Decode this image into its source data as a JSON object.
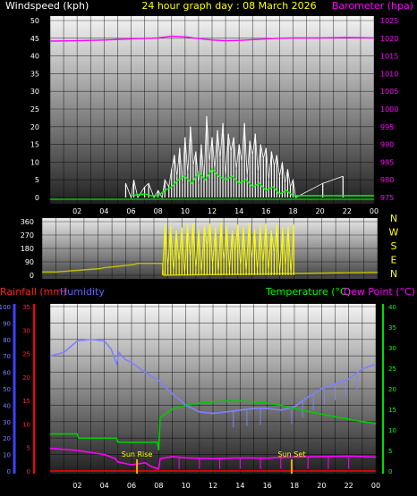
{
  "chart_data": [
    {
      "id": "top",
      "type": "line",
      "title": "24 hour graph day : 08 March 2026",
      "ylabel_left": "Windspeed (kph)",
      "ylabel_right": "Barometer (hpa)",
      "ylim_left": [
        0,
        50
      ],
      "ylim_right": [
        975,
        1025
      ],
      "yticks_left": [
        "0",
        "5",
        "10",
        "15",
        "20",
        "25",
        "30",
        "35",
        "40",
        "45",
        "50"
      ],
      "yticks_right": [
        "975",
        "980",
        "985",
        "990",
        "995",
        "1000",
        "1005",
        "1010",
        "1015",
        "1020",
        "1025"
      ],
      "xticks": [
        "02",
        "04",
        "06",
        "08",
        "10",
        "12",
        "14",
        "16",
        "18",
        "20",
        "22",
        "00"
      ],
      "colors": {
        "title": "#ffff00",
        "windspeed": "#ffffff",
        "gust": "#00ff00",
        "barometer": "#ff00ff",
        "grid": "#000000"
      },
      "series": [
        {
          "name": "Barometer (hpa)",
          "axis": "right",
          "x": [
            0,
            2,
            4,
            6,
            8,
            9,
            10,
            11,
            12,
            13,
            14,
            15,
            16,
            17,
            18,
            20,
            22,
            24
          ],
          "values": [
            1019.2,
            1019.3,
            1019.5,
            1019.8,
            1020.1,
            1020.6,
            1020.4,
            1019.9,
            1019.5,
            1019.3,
            1019.4,
            1019.6,
            1019.8,
            1020,
            1020.1,
            1020.1,
            1020.2,
            1020.1
          ]
        },
        {
          "name": "Windspeed (kph)",
          "axis": "left",
          "x": [
            5.6,
            6,
            6.2,
            6.5,
            7,
            7.3,
            7.7,
            8,
            8.3,
            8.5,
            8.8,
            9,
            9.2,
            9.4,
            9.6,
            9.8,
            10,
            10.2,
            10.4,
            10.6,
            10.8,
            11,
            11.2,
            11.4,
            11.6,
            11.8,
            12,
            12.2,
            12.4,
            12.6,
            12.8,
            13,
            13.2,
            13.4,
            13.6,
            13.8,
            14,
            14.2,
            14.4,
            14.6,
            14.8,
            15,
            15.2,
            15.4,
            15.6,
            15.8,
            16,
            16.2,
            16.4,
            16.6,
            16.8,
            17,
            17.2,
            17.4,
            17.6,
            17.8,
            18,
            18.2,
            20.2,
            21.7
          ],
          "values": [
            4,
            0,
            5,
            0,
            3,
            4,
            0,
            2,
            0,
            5,
            3,
            8,
            12,
            6,
            14,
            4,
            17,
            7,
            20,
            9,
            13,
            4,
            15,
            5,
            23,
            10,
            17,
            8,
            19,
            11,
            21,
            6,
            18,
            13,
            17,
            8,
            15,
            10,
            21,
            6,
            16,
            12,
            18,
            7,
            15,
            11,
            14,
            5,
            13,
            9,
            12,
            6,
            10,
            4,
            8,
            3,
            5,
            0,
            4,
            6
          ]
        },
        {
          "name": "Gust",
          "axis": "left",
          "x": [
            6,
            7,
            7.5,
            8,
            8.5,
            9,
            9.5,
            10,
            10.5,
            11,
            11.5,
            12,
            12.5,
            13,
            13.5,
            14,
            14.5,
            15,
            15.5,
            16,
            16.5,
            17,
            17.5,
            18,
            18.5,
            24
          ],
          "values": [
            0.5,
            1,
            0.5,
            0.5,
            2,
            3,
            5,
            6,
            4,
            7,
            5,
            8,
            6,
            5,
            6,
            4,
            5,
            3,
            4,
            2,
            3,
            1,
            2,
            0.5,
            0.5,
            0.5
          ]
        }
      ]
    },
    {
      "id": "dir",
      "type": "line",
      "ylim": [
        0,
        360
      ],
      "yticks": [
        "0",
        "90",
        "180",
        "270",
        "360"
      ],
      "direction_labels": [
        "N",
        "W",
        "S",
        "E",
        "N"
      ],
      "colors": {
        "direction": "#ffff00",
        "avg": "#c0c000"
      },
      "series": [
        {
          "name": "Wind Direction",
          "x": [
            8.6,
            8.8,
            9,
            9.2,
            9.4,
            9.6,
            9.8,
            10,
            10.2,
            10.4,
            10.6,
            10.8,
            11,
            11.2,
            11.4,
            11.6,
            11.8,
            12,
            12.2,
            12.4,
            12.6,
            12.8,
            13,
            13.2,
            13.4,
            13.6,
            13.8,
            14,
            14.2,
            14.4,
            14.6,
            14.8,
            15,
            15.2,
            15.4,
            15.6,
            15.8,
            16,
            16.2,
            16.4,
            16.6,
            16.8,
            17,
            17.2,
            17.4,
            17.6,
            17.8,
            18
          ],
          "values": [
            0,
            340,
            60,
            330,
            30,
            300,
            90,
            320,
            10,
            340,
            120,
            350,
            45,
            310,
            15,
            330,
            200,
            345,
            70,
            320,
            20,
            355,
            100,
            330,
            40,
            300,
            160,
            340,
            60,
            320,
            25,
            350,
            110,
            310,
            35,
            330,
            80,
            345,
            30,
            300,
            150,
            340,
            20,
            320,
            60,
            330,
            10,
            340
          ]
        },
        {
          "name": "Average Direction",
          "x": [
            0,
            1,
            4.2,
            4.4,
            6.6,
            6.8,
            8.6,
            8.7,
            24
          ],
          "values": [
            22,
            22,
            45,
            50,
            72,
            80,
            80,
            0,
            20
          ]
        }
      ]
    },
    {
      "id": "bottom",
      "type": "line",
      "labels": {
        "rainfall": "Rainfall (mm)",
        "humidity": "Humidity",
        "temperature": "Temperature (°C)",
        "dewpoint": "Dew Point (°C)"
      },
      "ylim_humidity": [
        0,
        100
      ],
      "ylim_rain": [
        0,
        35
      ],
      "ylim_temp": [
        0,
        40
      ],
      "yticks_humidity": [
        "0",
        "10",
        "20",
        "30",
        "40",
        "50",
        "60",
        "70",
        "80",
        "90",
        "100"
      ],
      "yticks_rain": [
        "0",
        "5",
        "10",
        "15",
        "20",
        "25",
        "30",
        "35"
      ],
      "yticks_temp": [
        "0",
        "5",
        "10",
        "15",
        "20",
        "25",
        "30",
        "35",
        "40"
      ],
      "xticks": [
        "02",
        "04",
        "06",
        "08",
        "10",
        "12",
        "14",
        "16",
        "18",
        "20",
        "22",
        "00"
      ],
      "annotations": [
        {
          "text": "Sun Rise",
          "x": 6.4
        },
        {
          "text": "Sun Set",
          "x": 17.8
        }
      ],
      "colors": {
        "rainfall": "#ff0000",
        "humidity": "#8080ff",
        "temperature": "#00cc00",
        "dewpoint": "#ff00ff",
        "humidity_label": "#6060ff",
        "temp_label": "#00ff00",
        "sun": "#ffaa00",
        "sunrise_text": "#ffff00",
        "sunset_text": "#ffff00"
      },
      "series": [
        {
          "name": "Humidity",
          "x": [
            0,
            1,
            2,
            3,
            4,
            4.5,
            4.9,
            5.1,
            5.5,
            6,
            7,
            8,
            9,
            10,
            11,
            12,
            13,
            14,
            15,
            16,
            17,
            18,
            19,
            20,
            21,
            22,
            23,
            24
          ],
          "values": [
            70,
            72,
            79,
            80,
            79,
            74,
            65,
            72,
            68,
            66,
            60,
            55,
            47,
            40,
            36,
            35,
            36,
            37,
            38,
            38,
            37,
            39,
            45,
            50,
            53,
            56,
            62,
            65
          ]
        },
        {
          "name": "Temperature (°C)",
          "x": [
            0,
            2,
            2.1,
            4.9,
            5,
            7.9,
            8,
            8.1,
            9,
            10,
            11,
            12,
            13,
            14,
            15,
            16,
            17,
            18,
            19,
            20,
            21,
            22,
            23,
            24
          ],
          "values": [
            9,
            9,
            8,
            8,
            7,
            7,
            5,
            13,
            15,
            16,
            16.5,
            16.8,
            17,
            17,
            16.8,
            16.5,
            16,
            15.2,
            14.5,
            13.8,
            13.2,
            12.6,
            12,
            11.5
          ]
        },
        {
          "name": "Dew Point (°C)",
          "x": [
            0,
            2,
            3,
            4,
            4.8,
            5,
            6,
            7,
            7.5,
            8,
            8.1,
            9,
            10,
            12,
            14,
            16,
            17,
            18,
            20,
            22,
            24
          ],
          "values": [
            5.5,
            5,
            4.5,
            4,
            3,
            2.2,
            1.5,
            2,
            1,
            0.5,
            3,
            3.5,
            3.2,
            3,
            3.2,
            3.1,
            3.3,
            3.4,
            3.5,
            3.6,
            3.4
          ]
        },
        {
          "name": "Rainfall (mm)",
          "x": [
            0,
            24
          ],
          "values": [
            0,
            0
          ]
        }
      ]
    }
  ]
}
